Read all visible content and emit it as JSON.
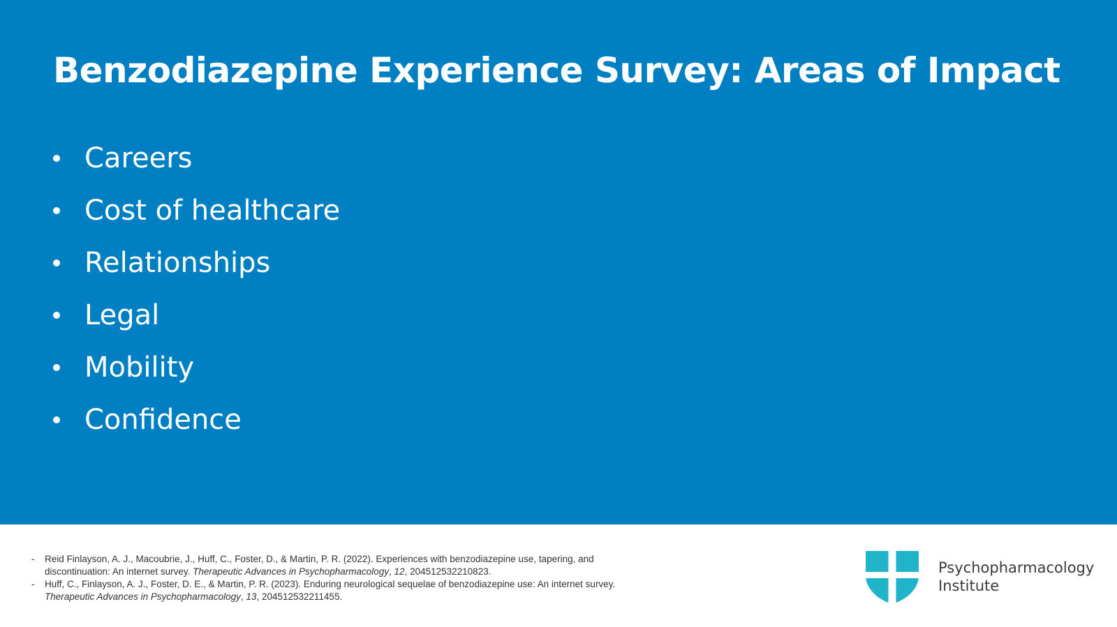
{
  "slide": {
    "title": "Benzodiazepine Experience Survey: Areas of Impact",
    "bullets": [
      "Careers",
      "Cost of healthcare",
      "Relationships",
      "Legal",
      "Mobility",
      "Confidence"
    ]
  },
  "references": [
    {
      "dash": "-",
      "before": "Reid Finlayson, A. J., Macoubrie, J., Huff, C., Foster, D., & Martin, P. R. (2022). Experiences with benzodiazepine use, tapering, and discontinuation: An internet survey. ",
      "journal": "Therapeutic Advances in Psychopharmacology",
      "sep1": ", ",
      "volume": "12",
      "after": ", 204512532210823."
    },
    {
      "dash": "-",
      "before": "Huff, C., Finlayson, A. J., Foster, D. E., & Martin, P. R. (2023). Enduring neurological sequelae of benzodiazepine use: An internet survey. ",
      "journal": "Therapeutic Advances in Psychopharmacology",
      "sep1": ", ",
      "volume": "13",
      "after": ", 204512532211455."
    }
  ],
  "logo": {
    "icon": "shield-cross-icon",
    "line1": "Psychopharmacology",
    "line2": "Institute",
    "colors": {
      "shield": "#1fb4c9",
      "text": "#3a3a3a"
    }
  },
  "colors": {
    "background": "#0080c2",
    "text": "#ffffff",
    "footer_bg": "#ffffff"
  }
}
